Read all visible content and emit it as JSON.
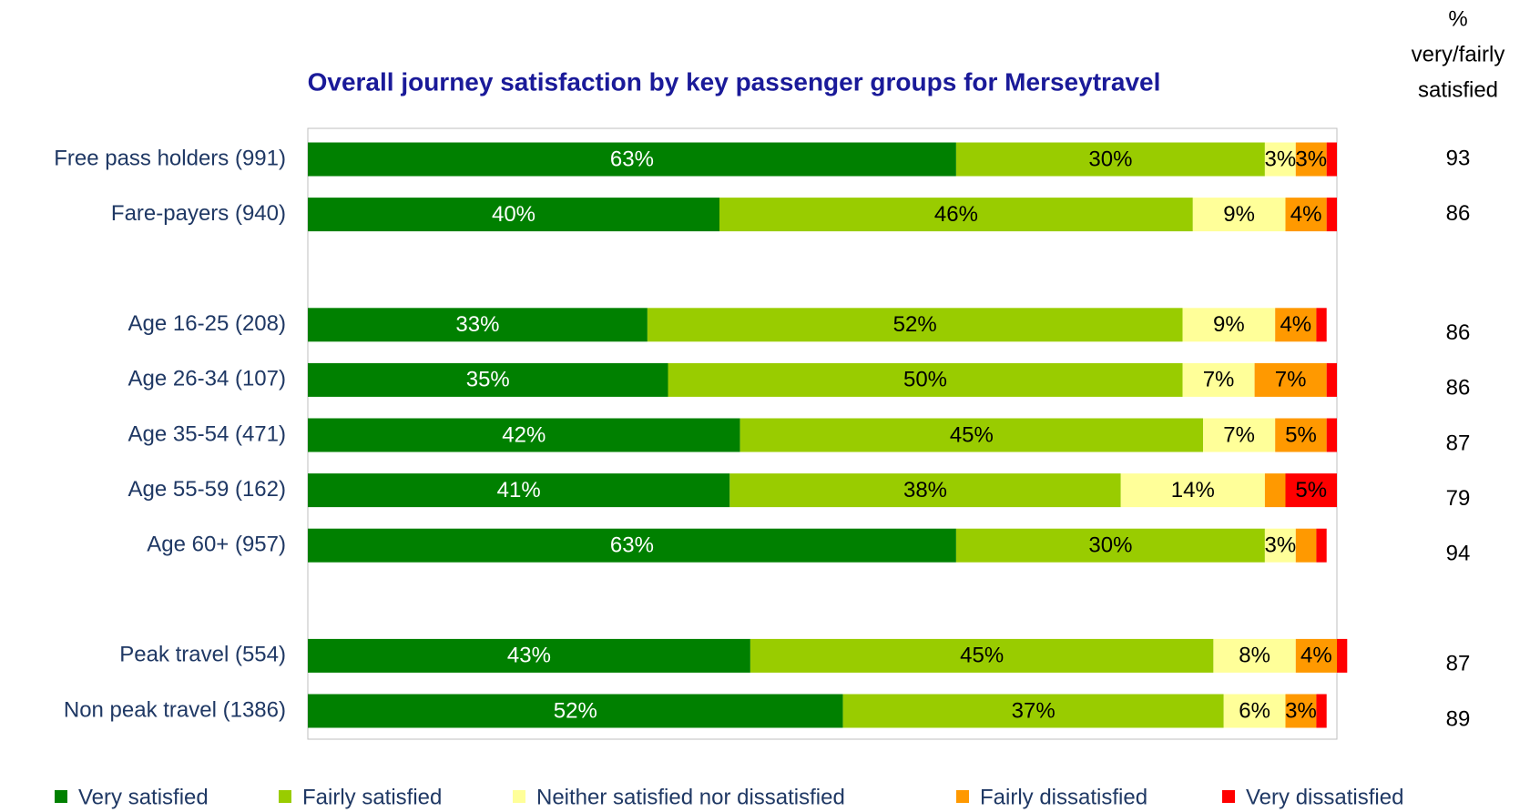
{
  "chart_data": {
    "type": "stacked-bar-horizontal",
    "title": "Overall journey satisfaction by key passenger groups for Merseytravel",
    "categories": [
      "Free pass holders (991)",
      "Fare-payers (940)",
      null,
      "Age 16-25 (208)",
      "Age 26-34 (107)",
      "Age 35-54 (471)",
      "Age 55-59 (162)",
      "Age 60+ (957)",
      null,
      "Peak travel (554)",
      "Non peak travel (1386)"
    ],
    "xlim": [
      0,
      100
    ],
    "series": [
      {
        "name": "Very satisfied",
        "color": "#008000",
        "values": [
          63,
          40,
          null,
          33,
          35,
          42,
          41,
          63,
          null,
          43,
          52
        ],
        "value_labels": [
          "63%",
          "40%",
          null,
          "33%",
          "35%",
          "42%",
          "41%",
          "63%",
          null,
          "43%",
          "52%"
        ]
      },
      {
        "name": "Fairly satisfied",
        "color": "#99cc00",
        "values": [
          30,
          46,
          null,
          52,
          50,
          45,
          38,
          30,
          null,
          45,
          37
        ],
        "value_labels": [
          "30%",
          "46%",
          null,
          "52%",
          "50%",
          "45%",
          "38%",
          "30%",
          null,
          "45%",
          "37%"
        ]
      },
      {
        "name": "Neither satisfied nor dissatisfied",
        "color": "#ffff99",
        "values": [
          3,
          9,
          null,
          9,
          7,
          7,
          14,
          3,
          null,
          8,
          6
        ],
        "value_labels": [
          "3%",
          "9%",
          null,
          "9%",
          "7%",
          "7%",
          "14%",
          "3%",
          null,
          "8%",
          "6%"
        ]
      },
      {
        "name": "Fairly dissatisfied",
        "color": "#ff9900",
        "values": [
          3,
          4,
          null,
          4,
          7,
          5,
          2,
          2,
          null,
          4,
          3
        ],
        "value_labels": [
          "3%",
          "4%",
          null,
          "4%",
          "7%",
          "5%",
          null,
          null,
          null,
          "4%",
          "3%"
        ]
      },
      {
        "name": "Very dissatisfied",
        "color": "#ff0000",
        "values": [
          1,
          1,
          null,
          1,
          1,
          1,
          5,
          1,
          null,
          1,
          1
        ],
        "value_labels": [
          null,
          null,
          null,
          null,
          null,
          null,
          "5%",
          null,
          null,
          null,
          null
        ]
      }
    ],
    "satisfied_header": [
      "%",
      "very/fairly",
      "satisfied"
    ],
    "satisfied_values": [
      93,
      86,
      null,
      86,
      86,
      87,
      79,
      94,
      null,
      87,
      89
    ]
  }
}
